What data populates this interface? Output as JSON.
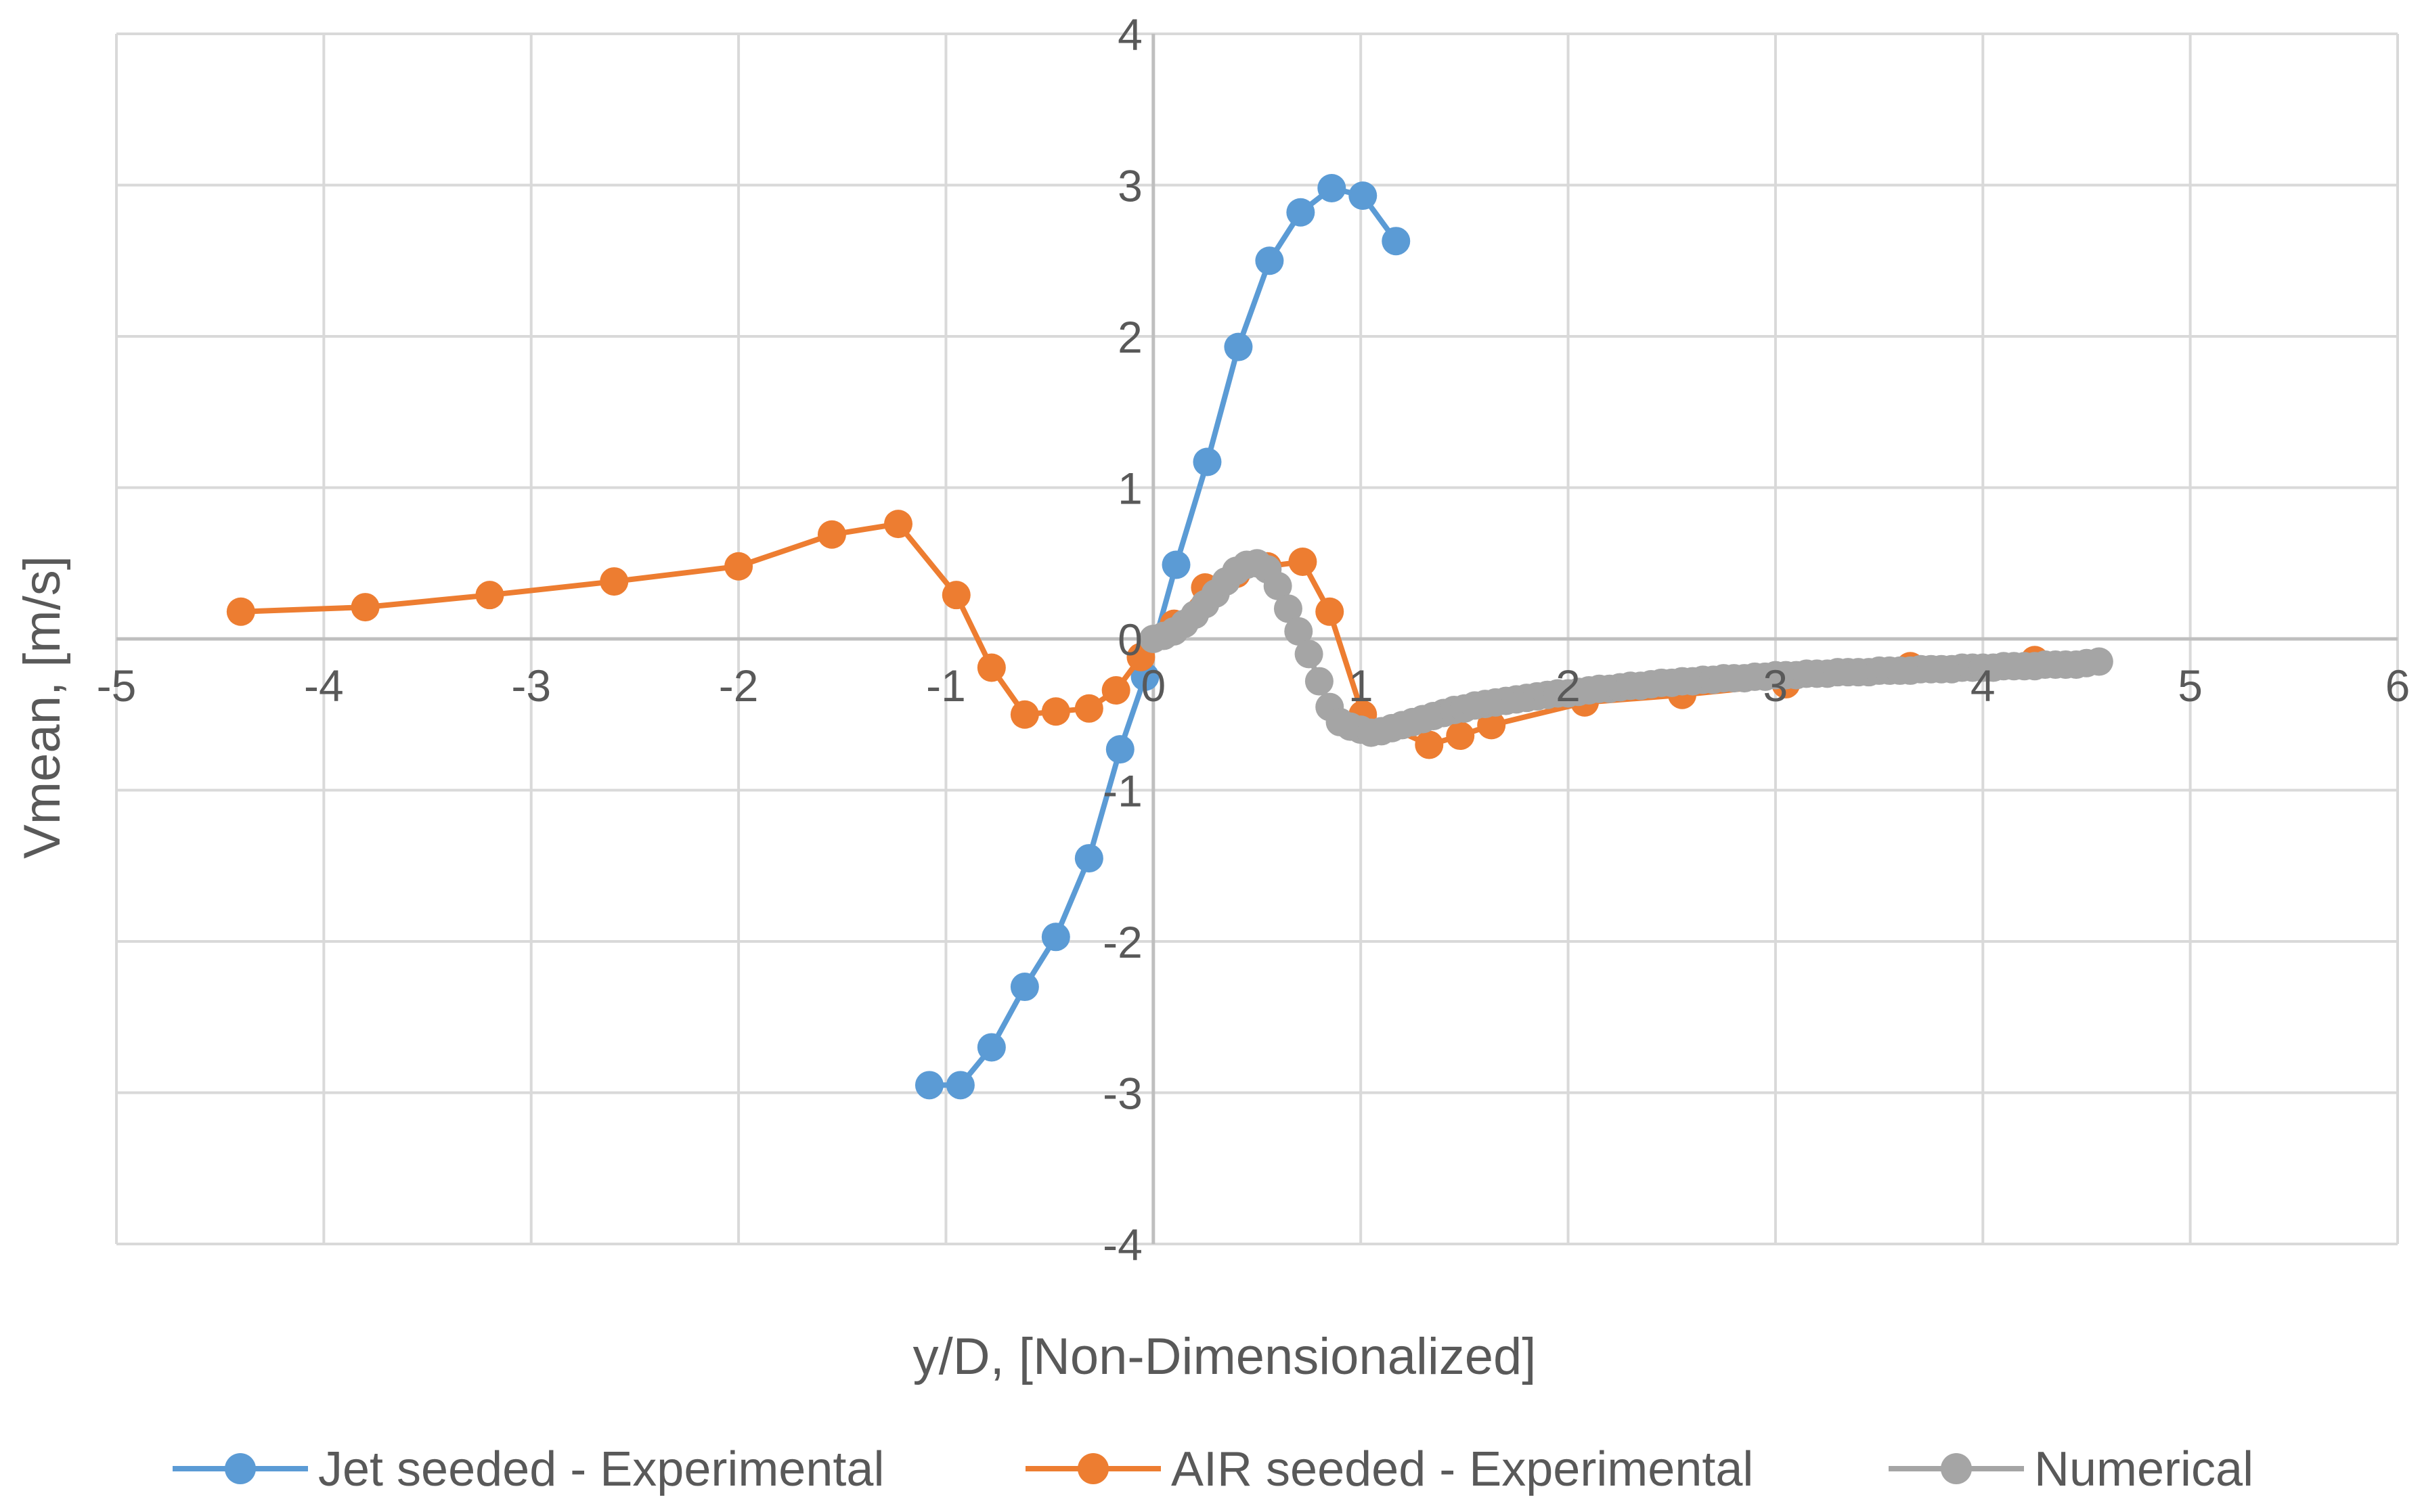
{
  "chart_data": {
    "type": "scatter",
    "title": "",
    "xlabel": "y/D, [Non-Dimensionalized]",
    "ylabel": "Vmean, [m/s]",
    "xlim": [
      -5,
      6
    ],
    "ylim": [
      -4,
      4
    ],
    "x_ticks": [
      -5,
      -4,
      -3,
      -2,
      -1,
      0,
      1,
      2,
      3,
      4,
      5,
      6
    ],
    "y_ticks": [
      -4,
      -3,
      -2,
      -1,
      0,
      1,
      2,
      3,
      4
    ],
    "grid": true,
    "legend_position": "bottom",
    "series": [
      {
        "name": "Jet seeded - Experimental",
        "color": "#5b9bd5",
        "x": [
          -1.08,
          -0.93,
          -0.78,
          -0.62,
          -0.47,
          -0.31,
          -0.16,
          -0.04,
          0.11,
          0.26,
          0.41,
          0.56,
          0.71,
          0.86,
          1.01,
          1.17
        ],
        "y": [
          -2.95,
          -2.95,
          -2.7,
          -2.3,
          -1.97,
          -1.45,
          -0.73,
          -0.25,
          0.49,
          1.17,
          1.93,
          2.5,
          2.82,
          2.98,
          2.93,
          2.63
        ]
      },
      {
        "name": "AIR seeded - Experimental",
        "color": "#ed7d31",
        "x": [
          -4.4,
          -3.8,
          -3.2,
          -2.6,
          -2.0,
          -1.55,
          -1.23,
          -0.95,
          -0.78,
          -0.62,
          -0.47,
          -0.31,
          -0.18,
          -0.06,
          0.1,
          0.25,
          0.4,
          0.55,
          0.72,
          0.85,
          1.01,
          1.33,
          1.48,
          1.63,
          2.08,
          2.55,
          3.05,
          3.65,
          4.25
        ],
        "y": [
          0.18,
          0.21,
          0.29,
          0.38,
          0.48,
          0.69,
          0.76,
          0.29,
          -0.19,
          -0.5,
          -0.48,
          -0.46,
          -0.34,
          -0.12,
          0.1,
          0.34,
          0.43,
          0.48,
          0.51,
          0.18,
          -0.5,
          -0.7,
          -0.64,
          -0.57,
          -0.42,
          -0.37,
          -0.3,
          -0.18,
          -0.14
        ]
      },
      {
        "name": "Numerical",
        "color": "#a5a5a5",
        "x": [
          0.0,
          0.05,
          0.1,
          0.15,
          0.2,
          0.25,
          0.3,
          0.35,
          0.4,
          0.45,
          0.5,
          0.55,
          0.6,
          0.65,
          0.7,
          0.75,
          0.8,
          0.85,
          0.9,
          0.95,
          1.0,
          1.05,
          1.1,
          1.15,
          1.2,
          1.25,
          1.3,
          1.35,
          1.4,
          1.45,
          1.5,
          1.55,
          1.6,
          1.65,
          1.7,
          1.75,
          1.8,
          1.85,
          1.9,
          1.95,
          2.0,
          2.05,
          2.1,
          2.15,
          2.2,
          2.25,
          2.3,
          2.35,
          2.4,
          2.45,
          2.5,
          2.55,
          2.6,
          2.65,
          2.7,
          2.75,
          2.8,
          2.85,
          2.9,
          2.95,
          3.0,
          3.05,
          3.1,
          3.15,
          3.2,
          3.25,
          3.3,
          3.35,
          3.4,
          3.45,
          3.5,
          3.55,
          3.6,
          3.65,
          3.7,
          3.75,
          3.8,
          3.85,
          3.9,
          3.95,
          4.0,
          4.05,
          4.1,
          4.15,
          4.2,
          4.25,
          4.3,
          4.35,
          4.4,
          4.45,
          4.5,
          4.56
        ],
        "y": [
          0.0,
          0.02,
          0.05,
          0.1,
          0.16,
          0.23,
          0.3,
          0.38,
          0.45,
          0.49,
          0.5,
          0.46,
          0.35,
          0.2,
          0.05,
          -0.1,
          -0.28,
          -0.45,
          -0.55,
          -0.58,
          -0.6,
          -0.62,
          -0.61,
          -0.59,
          -0.57,
          -0.55,
          -0.53,
          -0.51,
          -0.49,
          -0.47,
          -0.46,
          -0.44,
          -0.43,
          -0.42,
          -0.41,
          -0.4,
          -0.39,
          -0.38,
          -0.37,
          -0.36,
          -0.36,
          -0.35,
          -0.34,
          -0.33,
          -0.33,
          -0.32,
          -0.31,
          -0.31,
          -0.3,
          -0.29,
          -0.29,
          -0.28,
          -0.28,
          -0.27,
          -0.27,
          -0.26,
          -0.26,
          -0.26,
          -0.25,
          -0.25,
          -0.24,
          -0.24,
          -0.24,
          -0.23,
          -0.23,
          -0.23,
          -0.22,
          -0.22,
          -0.22,
          -0.22,
          -0.21,
          -0.21,
          -0.21,
          -0.21,
          -0.2,
          -0.2,
          -0.2,
          -0.2,
          -0.19,
          -0.19,
          -0.19,
          -0.19,
          -0.18,
          -0.18,
          -0.18,
          -0.18,
          -0.17,
          -0.17,
          -0.17,
          -0.17,
          -0.16,
          -0.15
        ]
      }
    ]
  }
}
